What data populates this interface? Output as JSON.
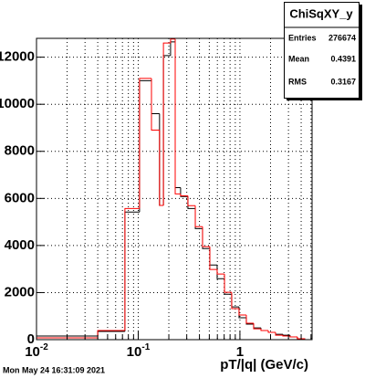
{
  "chart_data": {
    "type": "histogram",
    "x_label": "pT/|q| (GeV/c)",
    "timestamp": "Mon May 24 16:31:09 2021",
    "log_x": true,
    "grid": true,
    "bins": [
      0.01,
      0.04,
      0.074,
      0.103,
      0.135,
      0.162,
      0.177,
      0.208,
      0.231,
      0.261,
      0.308,
      0.364,
      0.429,
      0.506,
      0.597,
      0.705,
      0.83,
      0.98,
      1.156,
      1.364,
      1.61,
      1.9,
      2.24,
      2.64,
      3.11,
      3.67,
      4.33
    ],
    "series": [
      {
        "color": "#000000",
        "values": [
          155,
          350,
          5420,
          11000,
          9600,
          5700,
          12070,
          12650,
          6460,
          6080,
          5570,
          4720,
          3870,
          3170,
          2590,
          1930,
          1390,
          930,
          660,
          500,
          390,
          310,
          230,
          190,
          115,
          40
        ]
      },
      {
        "color": "#ff0000",
        "values": [
          80,
          390,
          5570,
          11100,
          8900,
          5700,
          12600,
          12770,
          6190,
          6110,
          5690,
          4800,
          3950,
          2980,
          2790,
          2010,
          1320,
          1045,
          700,
          460,
          390,
          310,
          190,
          155,
          115,
          40
        ]
      }
    ],
    "xlim": [
      0.01,
      5.12
    ],
    "ylim": [
      0,
      12800
    ],
    "xticks": [
      {
        "value": 0.01,
        "label": "10^-2"
      },
      {
        "value": 0.1,
        "label": "10^-1"
      },
      1
    ],
    "xminorticks": [
      0.02,
      0.03,
      0.04,
      0.05,
      0.06,
      0.07,
      0.08,
      0.09,
      0.2,
      0.3,
      0.4,
      0.5,
      0.6,
      0.7,
      0.8,
      0.9,
      2,
      3,
      4,
      5
    ],
    "yticks": [
      0,
      2000,
      4000,
      6000,
      8000,
      10000,
      12000
    ],
    "stats": {
      "title": "ChiSqXY_y",
      "entries_label": "Entries",
      "entries": 276674,
      "mean_label": "Mean",
      "mean": 0.4391,
      "rms_label": "RMS",
      "rms": 0.3167
    }
  }
}
